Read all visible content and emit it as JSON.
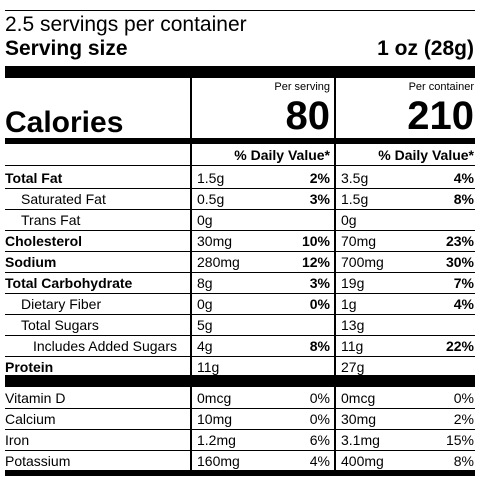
{
  "header": {
    "servings_per_container": "2.5 servings per container",
    "serving_size_label": "Serving size",
    "serving_size_value": "1 oz (28g)"
  },
  "calories": {
    "label": "Calories",
    "per_serving_label": "Per serving",
    "per_container_label": "Per container",
    "per_serving_value": "80",
    "per_container_value": "210"
  },
  "dv_header": "% Daily Value*",
  "nutrients": [
    {
      "name": "Total Fat",
      "bold": true,
      "indent": 0,
      "serving_amt": "1.5g",
      "serving_dv": "2%",
      "container_amt": "3.5g",
      "container_dv": "4%"
    },
    {
      "name": "Saturated Fat",
      "bold": false,
      "indent": 1,
      "serving_amt": "0.5g",
      "serving_dv": "3%",
      "container_amt": "1.5g",
      "container_dv": "8%"
    },
    {
      "name": "Trans Fat",
      "bold": false,
      "indent": 1,
      "serving_amt": "0g",
      "serving_dv": "",
      "container_amt": "0g",
      "container_dv": ""
    },
    {
      "name": "Cholesterol",
      "bold": true,
      "indent": 0,
      "serving_amt": "30mg",
      "serving_dv": "10%",
      "container_amt": "70mg",
      "container_dv": "23%"
    },
    {
      "name": "Sodium",
      "bold": true,
      "indent": 0,
      "serving_amt": "280mg",
      "serving_dv": "12%",
      "container_amt": "700mg",
      "container_dv": "30%"
    },
    {
      "name": "Total Carbohydrate",
      "bold": true,
      "indent": 0,
      "serving_amt": "8g",
      "serving_dv": "3%",
      "container_amt": "19g",
      "container_dv": "7%"
    },
    {
      "name": "Dietary Fiber",
      "bold": false,
      "indent": 1,
      "serving_amt": "0g",
      "serving_dv": "0%",
      "container_amt": "1g",
      "container_dv": "4%"
    },
    {
      "name": "Total Sugars",
      "bold": false,
      "indent": 1,
      "serving_amt": "5g",
      "serving_dv": "",
      "container_amt": "13g",
      "container_dv": ""
    },
    {
      "name": "Includes Added Sugars",
      "bold": false,
      "indent": 2,
      "serving_amt": "4g",
      "serving_dv": "8%",
      "container_amt": "11g",
      "container_dv": "22%"
    },
    {
      "name": "Protein",
      "bold": true,
      "indent": 0,
      "serving_amt": "11g",
      "serving_dv": "",
      "container_amt": "27g",
      "container_dv": ""
    }
  ],
  "micronutrients": [
    {
      "name": "Vitamin D",
      "serving_amt": "0mcg",
      "serving_dv": "0%",
      "container_amt": "0mcg",
      "container_dv": "0%"
    },
    {
      "name": "Calcium",
      "serving_amt": "10mg",
      "serving_dv": "0%",
      "container_amt": "30mg",
      "container_dv": "2%"
    },
    {
      "name": "Iron",
      "serving_amt": "1.2mg",
      "serving_dv": "6%",
      "container_amt": "3.1mg",
      "container_dv": "15%"
    },
    {
      "name": "Potassium",
      "serving_amt": "160mg",
      "serving_dv": "4%",
      "container_amt": "400mg",
      "container_dv": "8%"
    }
  ]
}
